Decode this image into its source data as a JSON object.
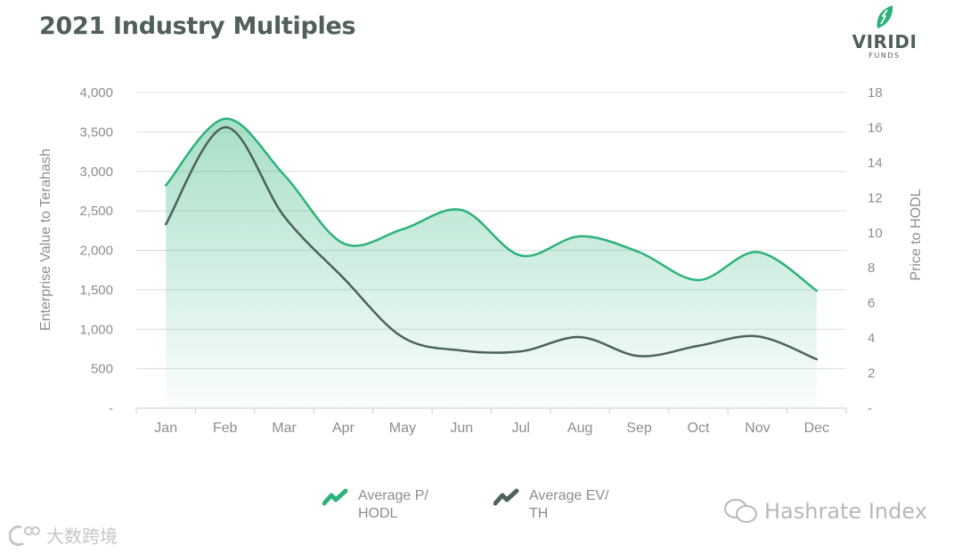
{
  "header": {
    "title": "2021 Industry Multiples"
  },
  "logo": {
    "name": "VIRIDI",
    "sub": "FUNDS"
  },
  "legend": [
    {
      "label": "Average P/ HODL",
      "color": "#2db27a",
      "icon": "trend-up-icon"
    },
    {
      "label": "Average EV/ TH",
      "color": "#4c6359",
      "icon": "trend-up-icon"
    }
  ],
  "watermarks": {
    "right": "Hashrate Index",
    "left": "大数跨境"
  },
  "chart_data": {
    "type": "area",
    "categories": [
      "Jan",
      "Feb",
      "Mar",
      "Apr",
      "May",
      "Jun",
      "Jul",
      "Aug",
      "Sep",
      "Oct",
      "Nov",
      "Dec"
    ],
    "y_left": {
      "label": "Enterprise Value to Terahash",
      "min": 0,
      "max": 4000,
      "ticks": [
        "-",
        "500",
        "1,000",
        "1,500",
        "2,000",
        "2,500",
        "3,000",
        "3,500",
        "4,000"
      ]
    },
    "y_right": {
      "label": "Price to HODL",
      "min": 0,
      "max": 18,
      "ticks": [
        "-",
        "2",
        "4",
        "6",
        "8",
        "10",
        "12",
        "14",
        "16",
        "18"
      ]
    },
    "grid": true,
    "legend_position": "bottom-center",
    "series": [
      {
        "name": "Average P/ HODL",
        "axis": "right",
        "color": "#2db27a",
        "fill": true,
        "values": [
          12.7,
          16.5,
          13.3,
          9.4,
          10.2,
          11.3,
          8.7,
          9.8,
          8.9,
          7.3,
          8.9,
          6.7
        ]
      },
      {
        "name": "Average EV/ TH",
        "axis": "left",
        "color": "#4c6359",
        "fill": false,
        "values": [
          2330,
          3560,
          2430,
          1650,
          900,
          730,
          720,
          900,
          660,
          790,
          910,
          620
        ]
      }
    ]
  }
}
